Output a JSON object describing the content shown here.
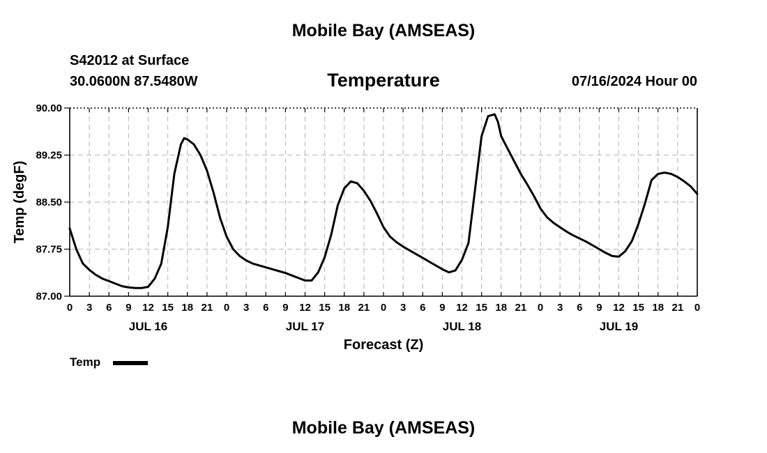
{
  "header": {
    "main_title": "Mobile Bay (AMSEAS)",
    "station": "S42012 at Surface",
    "coords": "30.0600N  87.5480W",
    "forecast_time": "07/16/2024 Hour 00",
    "footer_title": "Mobile Bay (AMSEAS)"
  },
  "chart_data": {
    "type": "line",
    "title": "Temperature",
    "xlabel": "Forecast (Z)",
    "ylabel": "Temp (degF)",
    "ylim": [
      87.0,
      90.0
    ],
    "xlim_hours": [
      0,
      96
    ],
    "y_ticks": [
      "87.00",
      "87.75",
      "88.50",
      "89.25",
      "90.00"
    ],
    "y_tick_values": [
      87.0,
      87.75,
      88.5,
      89.25,
      90.0
    ],
    "x_tick_labels": [
      "0",
      "3",
      "6",
      "9",
      "12",
      "15",
      "18",
      "21",
      "0",
      "3",
      "6",
      "9",
      "12",
      "15",
      "18",
      "21",
      "0",
      "3",
      "6",
      "9",
      "12",
      "15",
      "18",
      "21",
      "0",
      "3",
      "6",
      "9",
      "12",
      "15",
      "18",
      "21",
      "0"
    ],
    "day_labels": [
      "JUL 16",
      "JUL 17",
      "JUL 18",
      "JUL 19"
    ],
    "day_label_hours": [
      12,
      36,
      60,
      84
    ],
    "grid": true,
    "legend": "bottom-left",
    "series": [
      {
        "name": "Temp",
        "color": "#000000",
        "x": [
          0,
          1,
          2,
          3,
          4,
          5,
          6,
          7,
          8,
          9,
          10,
          11,
          12,
          13,
          14,
          15,
          16,
          17,
          17.5,
          18,
          19,
          20,
          21,
          22,
          23,
          24,
          25,
          26,
          27,
          28,
          29,
          30,
          31,
          32,
          33,
          34,
          35,
          36,
          37,
          38,
          39,
          40,
          41,
          42,
          43,
          44,
          45,
          46,
          47,
          48,
          49,
          50,
          51,
          52,
          53,
          54,
          55,
          56,
          57,
          58,
          59,
          60,
          61,
          62,
          63,
          64,
          65,
          65.5,
          66,
          67,
          68,
          69,
          70,
          71,
          72,
          73,
          74,
          75,
          76,
          77,
          78,
          79,
          80,
          81,
          82,
          83,
          84,
          85,
          86,
          87,
          88,
          89,
          90,
          91,
          92,
          93,
          94,
          95,
          96
        ],
        "values": [
          88.08,
          87.75,
          87.52,
          87.42,
          87.34,
          87.28,
          87.24,
          87.2,
          87.16,
          87.14,
          87.13,
          87.13,
          87.15,
          87.28,
          87.52,
          88.1,
          88.95,
          89.42,
          89.52,
          89.5,
          89.42,
          89.25,
          89.0,
          88.65,
          88.25,
          87.95,
          87.75,
          87.64,
          87.57,
          87.52,
          87.49,
          87.46,
          87.43,
          87.4,
          87.37,
          87.33,
          87.29,
          87.25,
          87.25,
          87.38,
          87.62,
          87.98,
          88.45,
          88.72,
          88.83,
          88.8,
          88.68,
          88.52,
          88.32,
          88.1,
          87.95,
          87.86,
          87.79,
          87.73,
          87.67,
          87.61,
          87.55,
          87.49,
          87.43,
          87.38,
          87.41,
          87.58,
          87.85,
          88.7,
          89.55,
          89.87,
          89.9,
          89.78,
          89.55,
          89.35,
          89.15,
          88.95,
          88.78,
          88.6,
          88.4,
          88.26,
          88.17,
          88.1,
          88.03,
          87.97,
          87.92,
          87.87,
          87.81,
          87.75,
          87.69,
          87.64,
          87.63,
          87.72,
          87.88,
          88.15,
          88.48,
          88.85,
          88.95,
          88.97,
          88.95,
          88.9,
          88.83,
          88.75,
          88.63
        ]
      }
    ]
  }
}
